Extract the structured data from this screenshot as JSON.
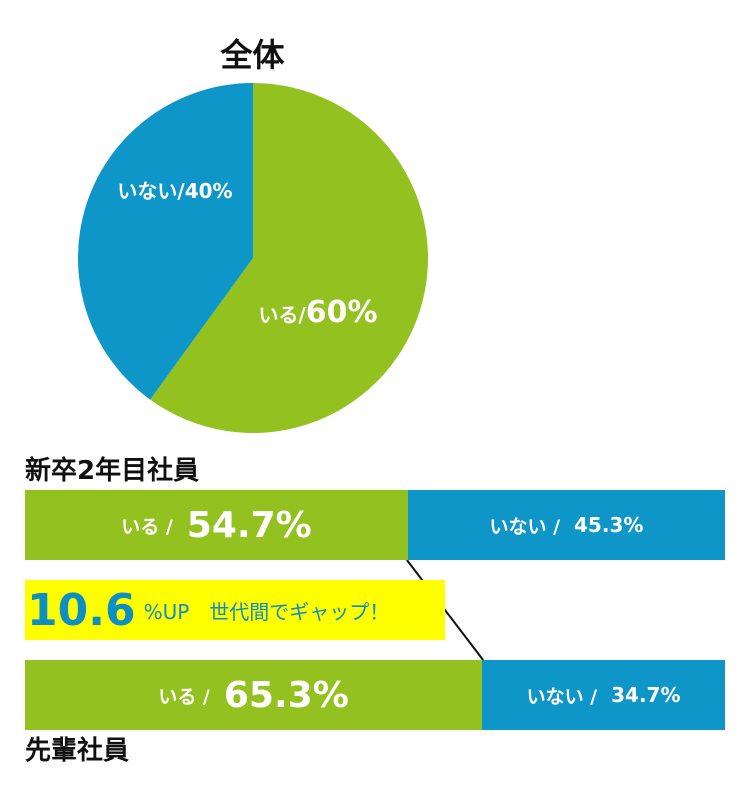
{
  "colors": {
    "iru": "#93c11f",
    "inai": "#0e96c8",
    "highlight": "#ffff00",
    "gap_text": "#0b8fc4"
  },
  "pie": {
    "title": "全体"
  },
  "bars": {
    "new_grad": {
      "title": "新卒2年目社員",
      "iru_label": "いる /",
      "iru_value": "54.7%",
      "inai_label": "いない /",
      "inai_value": "45.3%"
    },
    "senior": {
      "title": "先輩社員",
      "iru_label": "いる /",
      "iru_value": "65.3%",
      "inai_label": "いない /",
      "inai_value": "34.7%"
    }
  },
  "gap": {
    "value": "10.6",
    "text": "%UP　世代間でギャップ！"
  },
  "chart_data": [
    {
      "type": "pie",
      "title": "全体",
      "categories": [
        "いる",
        "いない"
      ],
      "values": [
        60,
        40
      ],
      "labels": [
        "いる/60%",
        "いない/40%"
      ],
      "colors": [
        "#93c11f",
        "#0e96c8"
      ]
    },
    {
      "type": "bar",
      "orientation": "horizontal-stacked",
      "categories": [
        "新卒2年目社員",
        "先輩社員"
      ],
      "series": [
        {
          "name": "いる",
          "values": [
            54.7,
            65.3
          ]
        },
        {
          "name": "いない",
          "values": [
            45.3,
            34.7
          ]
        }
      ],
      "xlim": [
        0,
        100
      ]
    }
  ]
}
